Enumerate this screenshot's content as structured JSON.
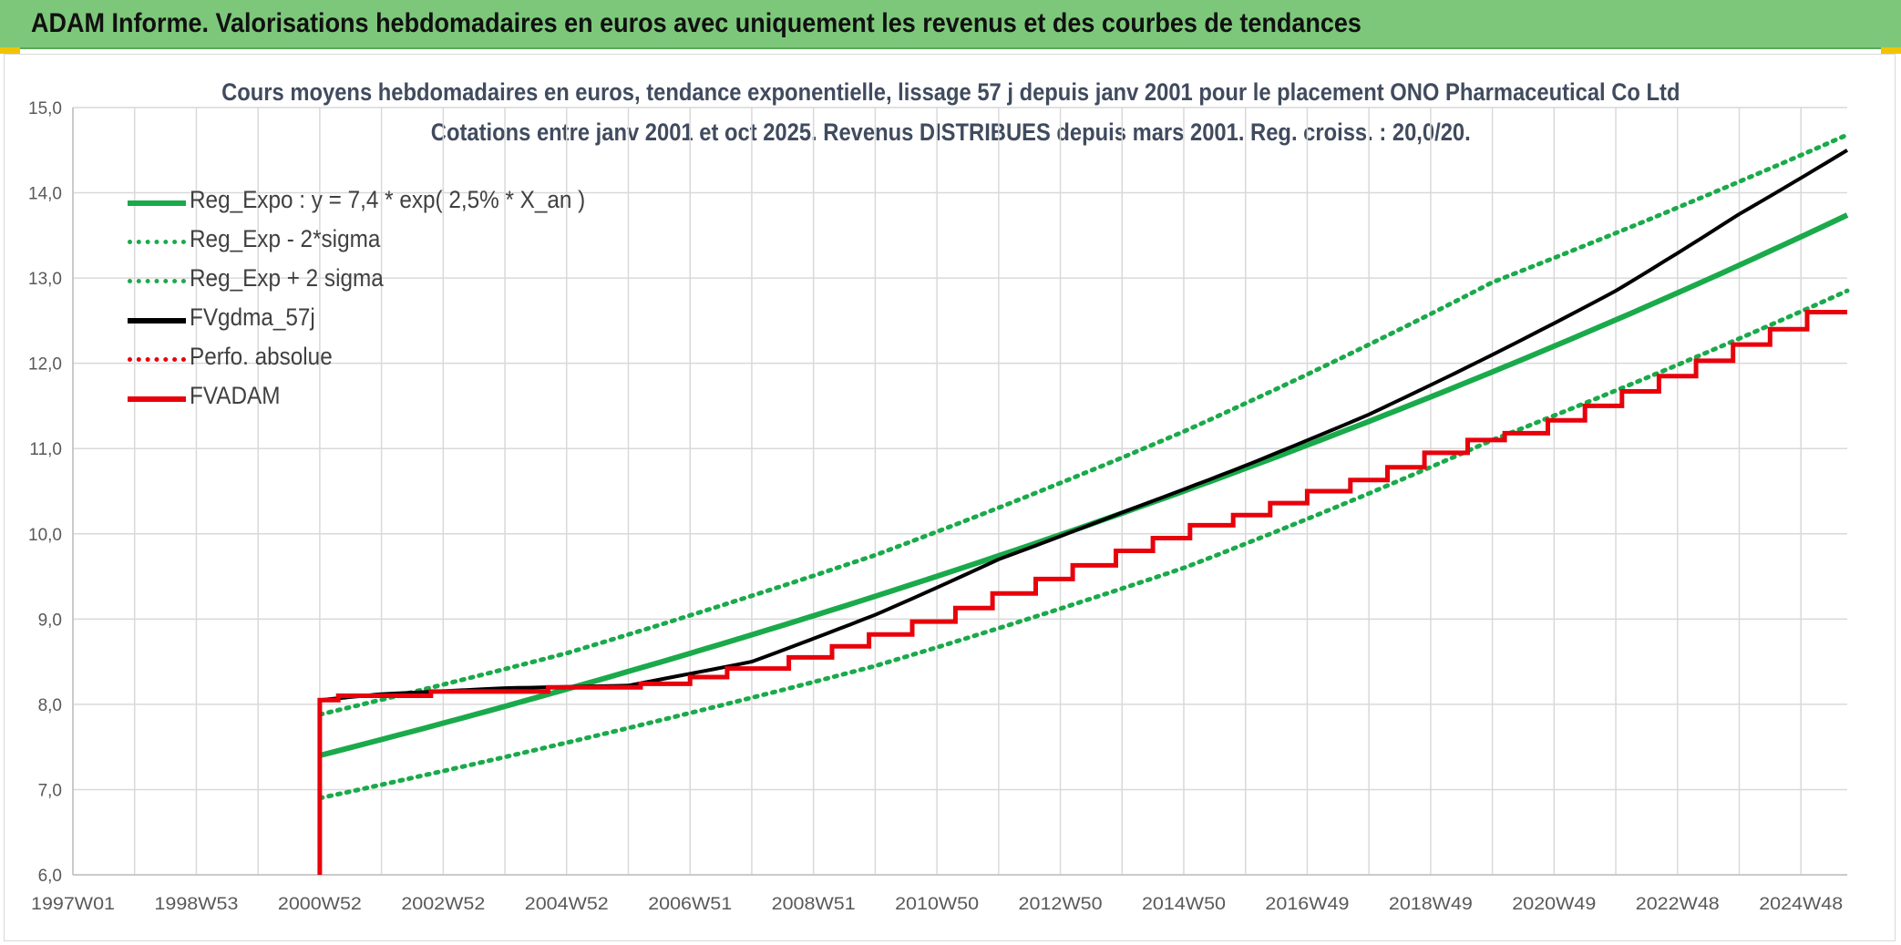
{
  "banner": {
    "title": "ADAM Informe. Valorisations hebdomadaires en euros avec uniquement les revenus et des courbes de tendances"
  },
  "colors": {
    "banner_bg": "#7dc77a",
    "trend_green": "#1aaa4b",
    "black": "#000000",
    "red": "#e8000b",
    "grid": "#d9d9d9",
    "axis_text": "#595959"
  },
  "chart_data": {
    "type": "line",
    "title_line1": "Cours moyens hebdomadaires en euros, tendance exponentielle, lissage 57 j depuis janv 2001 pour le placement ONO Pharmaceutical Co Ltd",
    "title_line2": "Cotations entre janv 2001 et oct 2025. Revenus DISTRIBUES depuis mars 2001. Reg. croiss. : 20,0/20.",
    "xlabel": "",
    "ylabel": "",
    "ylim": [
      6.0,
      15.0
    ],
    "xlim": [
      1997.0,
      2025.75
    ],
    "grid": true,
    "legend_position": "top-left",
    "y_ticks": [
      "6,0",
      "7,0",
      "8,0",
      "9,0",
      "10,0",
      "11,0",
      "12,0",
      "13,0",
      "14,0",
      "15,0"
    ],
    "x_tick_labels": [
      "1997W01",
      "1998W53",
      "2000W52",
      "2002W52",
      "2004W52",
      "2006W51",
      "2008W51",
      "2010W50",
      "2012W50",
      "2014W50",
      "2016W49",
      "2018W49",
      "2020W49",
      "2022W48",
      "2024W48"
    ],
    "x_tick_years": [
      1997.0,
      2000.0,
      2003.0
    ],
    "series": [
      {
        "name": "Reg_Expo : y = 7,4 * exp( 2,5% *  X_an )",
        "style": "solid",
        "color": "#1aaa4b",
        "x": [
          2001.0,
          2025.75
        ],
        "model": "exponential",
        "a": 7.4,
        "rate": 0.025
      },
      {
        "name": "Reg_Exp - 2*sigma",
        "style": "dotted",
        "color": "#1aaa4b",
        "x": [
          2001.0,
          2025.75
        ],
        "points": [
          [
            2001.0,
            6.9
          ],
          [
            2005.0,
            7.55
          ],
          [
            2010.0,
            8.45
          ],
          [
            2015.0,
            9.6
          ],
          [
            2020.0,
            11.1
          ],
          [
            2025.75,
            12.85
          ]
        ]
      },
      {
        "name": "Reg_Exp + 2 sigma",
        "style": "dotted",
        "color": "#1aaa4b",
        "points": [
          [
            2001.0,
            7.88
          ],
          [
            2005.0,
            8.6
          ],
          [
            2010.0,
            9.75
          ],
          [
            2015.0,
            11.2
          ],
          [
            2020.0,
            12.95
          ],
          [
            2025.75,
            14.68
          ]
        ]
      },
      {
        "name": "FVgdma_57j",
        "style": "solid",
        "color": "#000000",
        "points": [
          [
            2001.0,
            8.05
          ],
          [
            2002.0,
            8.12
          ],
          [
            2004.0,
            8.19
          ],
          [
            2006.0,
            8.22
          ],
          [
            2008.0,
            8.5
          ],
          [
            2010.0,
            9.05
          ],
          [
            2012.0,
            9.7
          ],
          [
            2014.0,
            10.25
          ],
          [
            2016.0,
            10.8
          ],
          [
            2018.0,
            11.4
          ],
          [
            2020.0,
            12.1
          ],
          [
            2022.0,
            12.85
          ],
          [
            2024.0,
            13.75
          ],
          [
            2025.75,
            14.5
          ]
        ]
      },
      {
        "name": "Perfo. absolue",
        "style": "dotted",
        "color": "#e8000b",
        "points": []
      },
      {
        "name": "FVADAM",
        "style": "solid",
        "color": "#e8000b",
        "start_drop": [
          2001.0,
          6.0
        ],
        "steps": [
          [
            2001.0,
            8.05
          ],
          [
            2001.3,
            8.1
          ],
          [
            2002.8,
            8.15
          ],
          [
            2004.7,
            8.2
          ],
          [
            2006.2,
            8.24
          ],
          [
            2007.0,
            8.32
          ],
          [
            2007.6,
            8.42
          ],
          [
            2008.6,
            8.55
          ],
          [
            2009.3,
            8.68
          ],
          [
            2009.9,
            8.82
          ],
          [
            2010.6,
            8.97
          ],
          [
            2011.3,
            9.13
          ],
          [
            2011.9,
            9.3
          ],
          [
            2012.6,
            9.47
          ],
          [
            2013.2,
            9.63
          ],
          [
            2013.9,
            9.8
          ],
          [
            2014.5,
            9.95
          ],
          [
            2015.1,
            10.1
          ],
          [
            2015.8,
            10.22
          ],
          [
            2016.4,
            10.36
          ],
          [
            2017.0,
            10.5
          ],
          [
            2017.7,
            10.63
          ],
          [
            2018.3,
            10.78
          ],
          [
            2018.9,
            10.95
          ],
          [
            2019.6,
            11.1
          ],
          [
            2020.2,
            11.18
          ],
          [
            2020.9,
            11.33
          ],
          [
            2021.5,
            11.5
          ],
          [
            2022.1,
            11.67
          ],
          [
            2022.7,
            11.85
          ],
          [
            2023.3,
            12.03
          ],
          [
            2023.9,
            12.22
          ],
          [
            2024.5,
            12.4
          ],
          [
            2025.1,
            12.6
          ],
          [
            2025.75,
            12.6
          ]
        ]
      }
    ]
  }
}
